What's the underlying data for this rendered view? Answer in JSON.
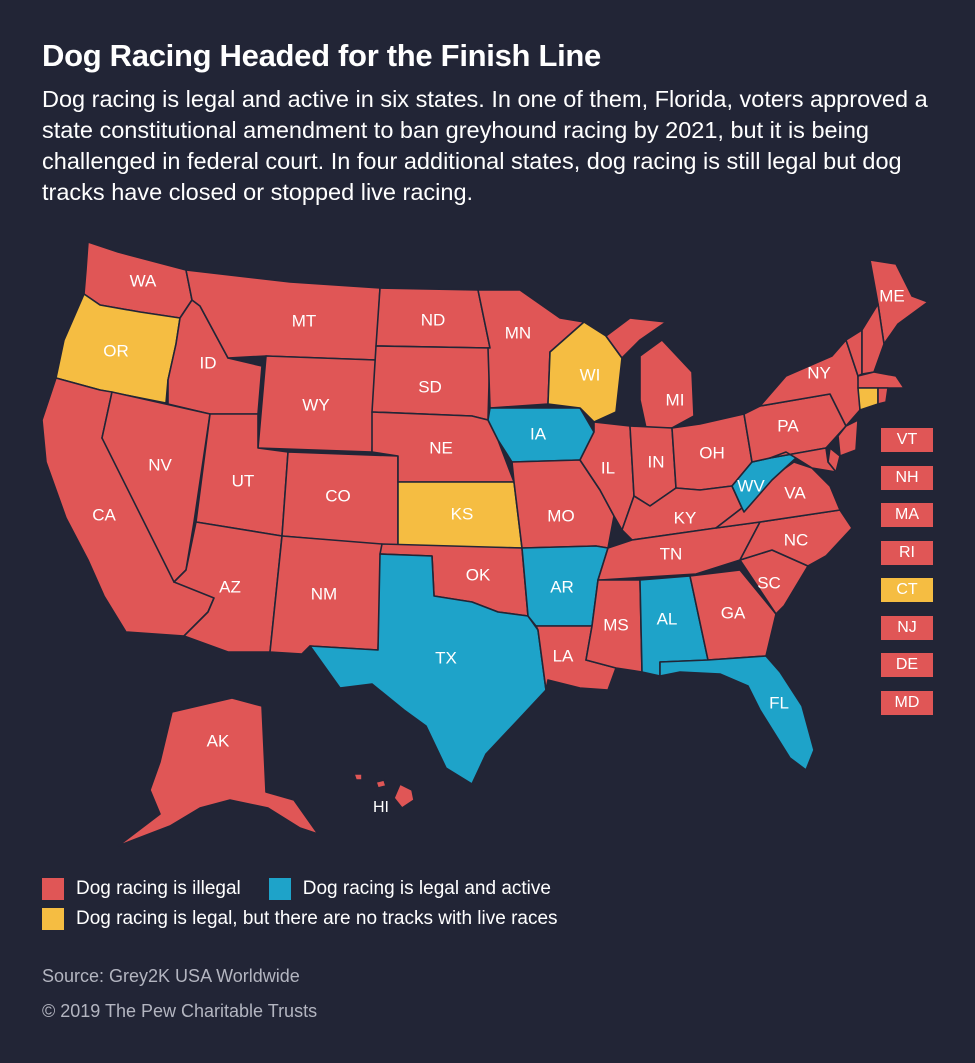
{
  "title": "Dog Racing Headed for the Finish Line",
  "subtitle": "Dog racing is legal and active in six states. In one of them, Florida, voters approved a state constitutional amendment to ban greyhound racing by 2021, but it is being challenged in federal court. In four additional states, dog racing is still legal but dog tracks have closed or stopped live racing.",
  "colors": {
    "illegal": "#e05656",
    "active": "#1ea3c9",
    "no_tracks": "#f5bd42",
    "background": "#222536"
  },
  "states": [
    {
      "abbr": "WA",
      "status": "illegal"
    },
    {
      "abbr": "OR",
      "status": "no_tracks"
    },
    {
      "abbr": "CA",
      "status": "illegal"
    },
    {
      "abbr": "ID",
      "status": "illegal"
    },
    {
      "abbr": "NV",
      "status": "illegal"
    },
    {
      "abbr": "MT",
      "status": "illegal"
    },
    {
      "abbr": "WY",
      "status": "illegal"
    },
    {
      "abbr": "UT",
      "status": "illegal"
    },
    {
      "abbr": "AZ",
      "status": "illegal"
    },
    {
      "abbr": "CO",
      "status": "illegal"
    },
    {
      "abbr": "NM",
      "status": "illegal"
    },
    {
      "abbr": "ND",
      "status": "illegal"
    },
    {
      "abbr": "SD",
      "status": "illegal"
    },
    {
      "abbr": "NE",
      "status": "illegal"
    },
    {
      "abbr": "KS",
      "status": "no_tracks"
    },
    {
      "abbr": "OK",
      "status": "illegal"
    },
    {
      "abbr": "TX",
      "status": "active"
    },
    {
      "abbr": "MN",
      "status": "illegal"
    },
    {
      "abbr": "IA",
      "status": "active"
    },
    {
      "abbr": "MO",
      "status": "illegal"
    },
    {
      "abbr": "AR",
      "status": "active"
    },
    {
      "abbr": "LA",
      "status": "illegal"
    },
    {
      "abbr": "WI",
      "status": "no_tracks"
    },
    {
      "abbr": "IL",
      "status": "illegal"
    },
    {
      "abbr": "MI",
      "status": "illegal"
    },
    {
      "abbr": "IN",
      "status": "illegal"
    },
    {
      "abbr": "OH",
      "status": "illegal"
    },
    {
      "abbr": "KY",
      "status": "illegal"
    },
    {
      "abbr": "TN",
      "status": "illegal"
    },
    {
      "abbr": "MS",
      "status": "illegal"
    },
    {
      "abbr": "AL",
      "status": "active"
    },
    {
      "abbr": "GA",
      "status": "illegal"
    },
    {
      "abbr": "FL",
      "status": "active"
    },
    {
      "abbr": "SC",
      "status": "illegal"
    },
    {
      "abbr": "NC",
      "status": "illegal"
    },
    {
      "abbr": "VA",
      "status": "illegal"
    },
    {
      "abbr": "WV",
      "status": "active"
    },
    {
      "abbr": "PA",
      "status": "illegal"
    },
    {
      "abbr": "NY",
      "status": "illegal"
    },
    {
      "abbr": "ME",
      "status": "illegal"
    },
    {
      "abbr": "AK",
      "status": "illegal"
    },
    {
      "abbr": "HI",
      "status": "illegal"
    }
  ],
  "small_states": [
    {
      "abbr": "VT",
      "status": "illegal"
    },
    {
      "abbr": "NH",
      "status": "illegal"
    },
    {
      "abbr": "MA",
      "status": "illegal"
    },
    {
      "abbr": "RI",
      "status": "illegal"
    },
    {
      "abbr": "CT",
      "status": "no_tracks"
    },
    {
      "abbr": "NJ",
      "status": "illegal"
    },
    {
      "abbr": "DE",
      "status": "illegal"
    },
    {
      "abbr": "MD",
      "status": "illegal"
    }
  ],
  "legend": {
    "illegal": "Dog racing is illegal",
    "active": "Dog racing is legal and active",
    "no_tracks": "Dog racing is legal, but there are no tracks with live races"
  },
  "source": "Source: Grey2K USA Worldwide",
  "copyright": "© 2019 The Pew Charitable Trusts"
}
